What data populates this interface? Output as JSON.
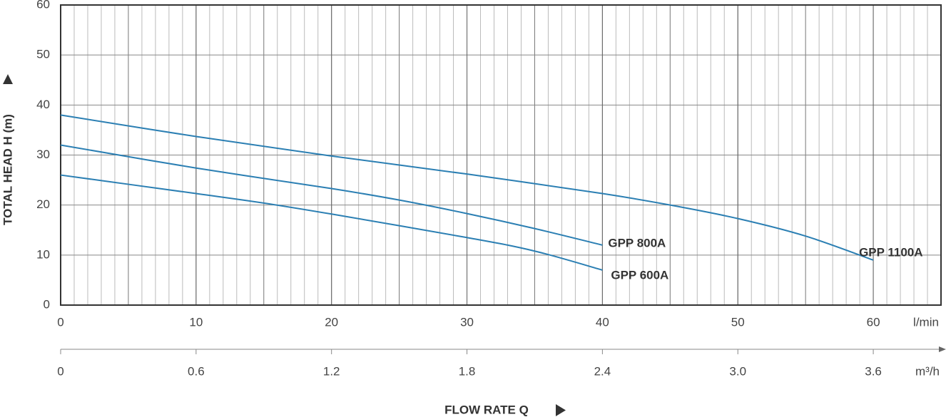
{
  "chart_data": {
    "type": "line",
    "y_label": "TOTAL HEAD H (m)",
    "x_label": "FLOW RATE Q",
    "x_unit": "l/min",
    "x2_unit": "m³/h",
    "xlim": [
      0,
      65
    ],
    "xticks": [
      0,
      10,
      20,
      30,
      40,
      50,
      60
    ],
    "x2lim": [
      0,
      3.9
    ],
    "x2ticks": [
      0,
      0.6,
      1.2,
      1.8,
      2.4,
      {
        "value": 3,
        "label": "3.0"
      },
      3.6
    ],
    "ylim": [
      0,
      60
    ],
    "yticks": [
      0,
      10,
      20,
      30,
      40,
      50,
      60
    ],
    "grid": true,
    "series": [
      {
        "name": "GPP 1100A",
        "color": "#2b7fb3",
        "x": [
          0,
          10,
          20,
          30,
          40,
          45,
          50,
          55,
          60
        ],
        "values": [
          38,
          33.7,
          29.8,
          26.2,
          22.3,
          20,
          17.3,
          13.8,
          9
        ]
      },
      {
        "name": "GPP 800A",
        "color": "#2b7fb3",
        "x": [
          0,
          10,
          20,
          25,
          30,
          35,
          40
        ],
        "values": [
          32,
          27.4,
          23.3,
          21,
          18.3,
          15.3,
          12
        ]
      },
      {
        "name": "GPP 600A",
        "color": "#2b7fb3",
        "x": [
          0,
          10,
          15,
          20,
          30,
          35,
          40
        ],
        "values": [
          26,
          22.3,
          20.4,
          18.2,
          13.5,
          10.8,
          7
        ]
      }
    ]
  }
}
